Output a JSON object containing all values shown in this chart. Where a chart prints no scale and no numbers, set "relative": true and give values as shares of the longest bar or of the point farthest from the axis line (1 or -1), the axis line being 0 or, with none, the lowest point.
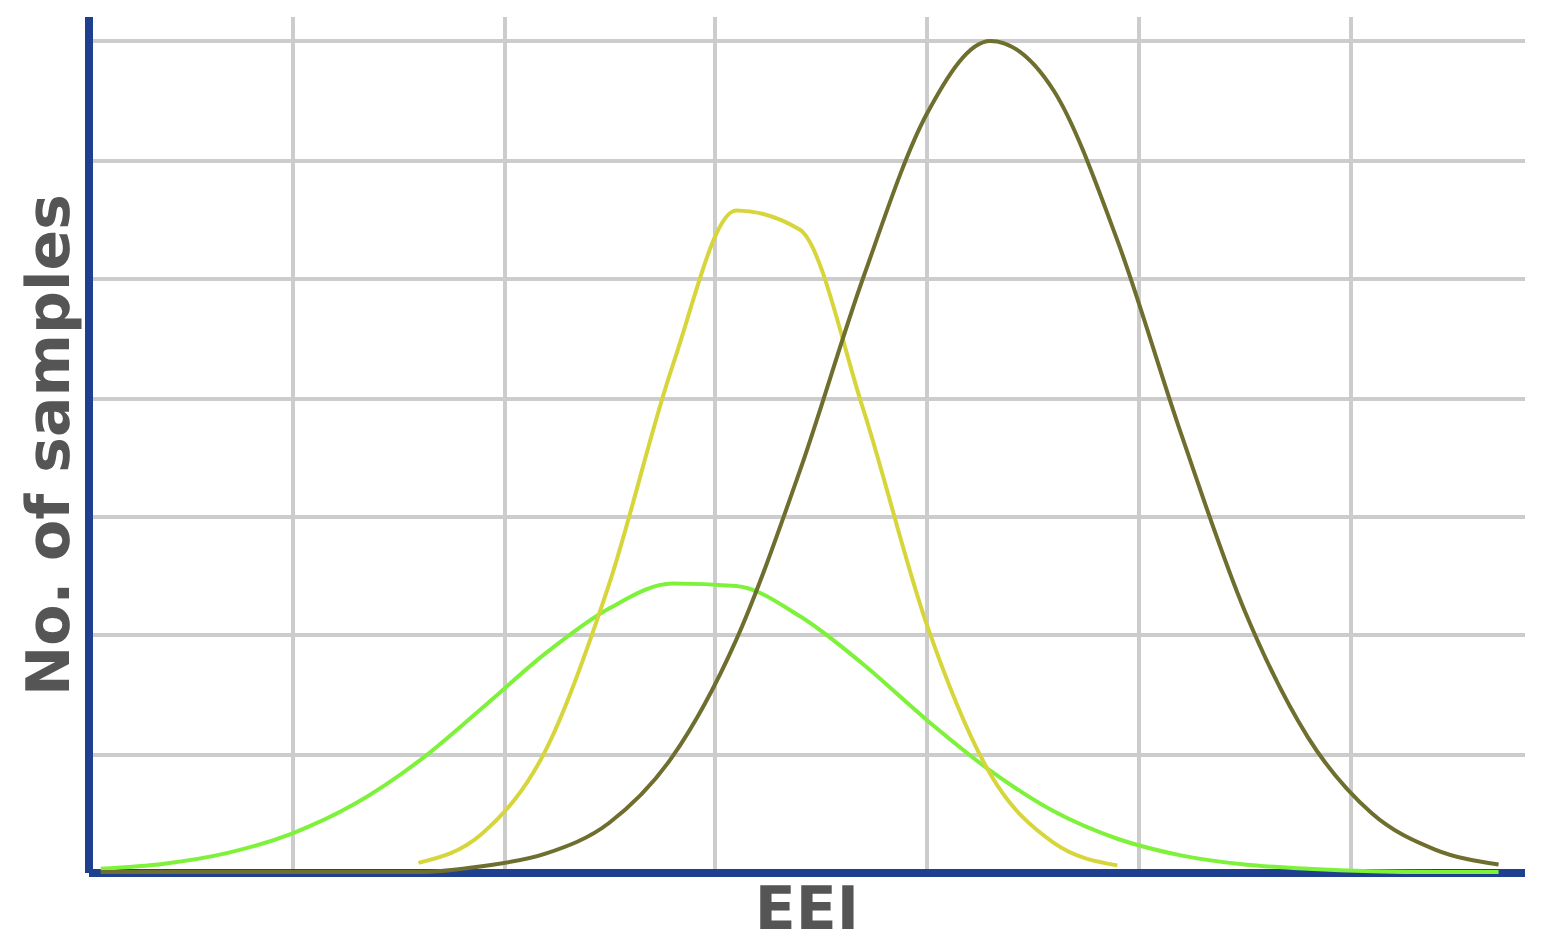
{
  "chart_data": {
    "type": "line",
    "relative": true,
    "xlabel": "EEI",
    "ylabel": "No. of samples",
    "grid": true,
    "tick_labels": false,
    "categories": [
      null,
      null,
      null,
      null,
      null,
      null,
      null,
      null,
      null,
      null,
      null,
      null,
      null,
      null,
      null,
      null,
      null,
      null,
      null,
      null,
      null,
      null,
      null
    ],
    "series": [
      {
        "color": "#7ef23a",
        "values": [
          0.004,
          0.01,
          0.023,
          0.046,
          0.082,
          0.133,
          0.197,
          0.263,
          0.317,
          0.347,
          0.344,
          0.308,
          0.25,
          0.183,
          0.122,
          0.073,
          0.04,
          0.02,
          0.009,
          0.004,
          0.001,
          0,
          0
        ]
      },
      {
        "color": "#d6d63c",
        "values": [
          null,
          null,
          null,
          null,
          null,
          0.011,
          0.046,
          0.146,
          0.346,
          0.609,
          0.796,
          0.773,
          0.557,
          0.298,
          0.118,
          0.035,
          0.008,
          null,
          null,
          null,
          null,
          null,
          null
        ]
      },
      {
        "color": "#6e6e2e",
        "values": [
          0,
          0,
          0,
          0,
          0,
          0,
          0.007,
          0.022,
          0.059,
          0.139,
          0.279,
          0.482,
          0.715,
          0.912,
          1.0,
          0.94,
          0.76,
          0.528,
          0.315,
          0.162,
          0.071,
          0.027,
          0.009
        ]
      }
    ]
  }
}
